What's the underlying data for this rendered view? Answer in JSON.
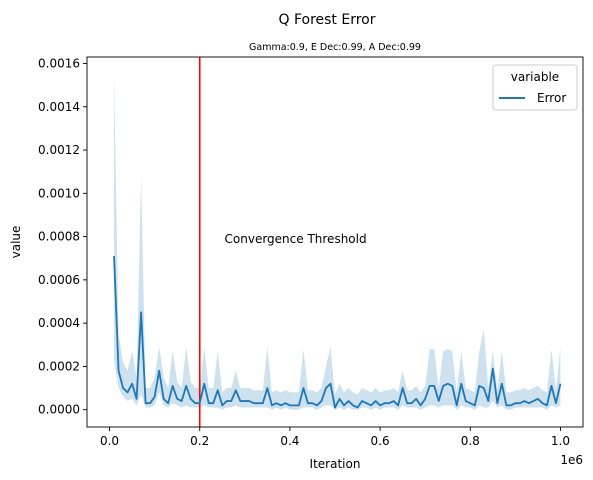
{
  "chart_data": {
    "type": "line",
    "title": "Q Forest Error",
    "subtitle": "Gamma:0.9, E Dec:0.99, A Dec:0.99",
    "xlabel": "Iteration",
    "ylabel": "value",
    "x_offset_label": "1e6",
    "xlim": [
      -50000,
      1050000
    ],
    "ylim": [
      -8e-05,
      0.00163
    ],
    "x_ticks": [
      0,
      200000,
      400000,
      600000,
      800000,
      1000000
    ],
    "x_tick_labels": [
      "0.0",
      "0.2",
      "0.4",
      "0.6",
      "0.8",
      "1.0"
    ],
    "y_ticks": [
      0,
      0.0002,
      0.0004,
      0.0006,
      0.0008,
      0.001,
      0.0012,
      0.0014,
      0.0016
    ],
    "y_tick_labels": [
      "0.0000",
      "0.0002",
      "0.0004",
      "0.0006",
      "0.0008",
      "0.0010",
      "0.0012",
      "0.0014",
      "0.0016"
    ],
    "legend": {
      "title": "variable",
      "placement": "top-right",
      "entries": [
        "Error"
      ]
    },
    "grid": false,
    "series": [
      {
        "name": "Error",
        "color": "#1f77b4",
        "x": [
          10000,
          20000,
          30000,
          40000,
          50000,
          60000,
          70000,
          80000,
          90000,
          100000,
          110000,
          120000,
          130000,
          140000,
          150000,
          160000,
          170000,
          180000,
          190000,
          200000,
          210000,
          220000,
          230000,
          240000,
          250000,
          260000,
          270000,
          280000,
          290000,
          300000,
          310000,
          320000,
          330000,
          340000,
          350000,
          360000,
          370000,
          380000,
          390000,
          400000,
          410000,
          420000,
          430000,
          440000,
          450000,
          460000,
          470000,
          480000,
          490000,
          500000,
          510000,
          520000,
          530000,
          540000,
          550000,
          560000,
          570000,
          580000,
          590000,
          600000,
          610000,
          620000,
          630000,
          640000,
          650000,
          660000,
          670000,
          680000,
          690000,
          700000,
          710000,
          720000,
          730000,
          740000,
          750000,
          760000,
          770000,
          780000,
          790000,
          800000,
          810000,
          820000,
          830000,
          840000,
          850000,
          860000,
          870000,
          880000,
          890000,
          900000,
          910000,
          920000,
          930000,
          940000,
          950000,
          960000,
          970000,
          980000,
          990000,
          1000000
        ],
        "y": [
          0.00071,
          0.00018,
          0.0001,
          8e-05,
          0.00012,
          5e-05,
          0.00045,
          3e-05,
          3e-05,
          6e-05,
          0.00018,
          5e-05,
          3e-05,
          0.00011,
          5e-05,
          4e-05,
          0.00011,
          5e-05,
          3e-05,
          3e-05,
          0.00012,
          3e-05,
          3e-05,
          9e-05,
          2e-05,
          4e-05,
          4e-05,
          9e-05,
          4e-05,
          4e-05,
          4e-05,
          3e-05,
          3e-05,
          3e-05,
          0.0001,
          2e-05,
          3e-05,
          2e-05,
          3e-05,
          2e-05,
          2e-05,
          2e-05,
          0.0001,
          3e-05,
          3e-05,
          2e-05,
          4e-05,
          0.0001,
          0.00012,
          1e-05,
          5e-05,
          2e-05,
          4e-05,
          2e-05,
          1e-05,
          4e-05,
          3e-05,
          2e-05,
          4e-05,
          2e-05,
          3e-05,
          3e-05,
          4e-05,
          2e-05,
          0.0001,
          3e-05,
          3e-05,
          5e-05,
          2e-05,
          5e-05,
          0.00011,
          0.00011,
          4e-05,
          0.00011,
          0.00012,
          0.00011,
          2e-05,
          0.00012,
          4e-05,
          3e-05,
          2e-05,
          0.00011,
          0.0001,
          4e-05,
          0.00019,
          3e-05,
          0.00012,
          2e-05,
          2e-05,
          3e-05,
          3e-05,
          4e-05,
          3e-05,
          4e-05,
          5e-05,
          3e-05,
          2e-05,
          0.00011,
          3e-05,
          0.00012
        ],
        "ci_upper": [
          0.00155,
          0.00035,
          0.00022,
          0.00018,
          0.00027,
          0.00015,
          0.00108,
          0.0001,
          0.0001,
          0.00015,
          0.00029,
          0.00015,
          0.0001,
          0.00027,
          0.00013,
          0.0001,
          0.00029,
          0.00013,
          0.0001,
          0.0001,
          0.00029,
          0.0001,
          0.0001,
          0.00027,
          8e-05,
          0.0001,
          0.0001,
          0.00018,
          0.0001,
          0.0001,
          0.0001,
          9e-05,
          9e-05,
          9e-05,
          0.00029,
          8e-05,
          9e-05,
          8e-05,
          9e-05,
          8e-05,
          8e-05,
          8e-05,
          0.00028,
          9e-05,
          9e-05,
          8e-05,
          0.0001,
          0.0002,
          0.00029,
          7e-05,
          0.00012,
          8e-05,
          0.0001,
          8e-05,
          7e-05,
          0.0001,
          9e-05,
          8e-05,
          0.0001,
          8e-05,
          9e-05,
          9e-05,
          0.0001,
          8e-05,
          0.00018,
          9e-05,
          9e-05,
          0.00011,
          8e-05,
          0.00011,
          0.00028,
          0.00028,
          0.0001,
          0.00027,
          0.00028,
          0.00027,
          8e-05,
          0.00027,
          0.0001,
          9e-05,
          8e-05,
          0.00027,
          0.00037,
          0.0001,
          0.00027,
          9e-05,
          0.00027,
          8e-05,
          8e-05,
          9e-05,
          9e-05,
          0.0001,
          9e-05,
          0.0001,
          0.00011,
          9e-05,
          8e-05,
          0.00028,
          9e-05,
          0.00029
        ],
        "ci_lower": [
          0.00023,
          0.0001,
          6e-05,
          4e-05,
          5e-05,
          2e-05,
          7e-05,
          1e-05,
          1e-05,
          2e-05,
          8e-05,
          2e-05,
          1e-05,
          3e-05,
          2e-05,
          1e-05,
          2e-05,
          1e-05,
          1e-05,
          1e-05,
          2e-05,
          1e-05,
          1e-05,
          1e-05,
          0.0,
          1e-05,
          1e-05,
          2e-05,
          1e-05,
          1e-05,
          1e-05,
          1e-05,
          1e-05,
          1e-05,
          1e-05,
          0.0,
          1e-05,
          0.0,
          1e-05,
          0.0,
          0.0,
          0.0,
          1e-05,
          1e-05,
          1e-05,
          0.0,
          1e-05,
          2e-05,
          2e-05,
          0.0,
          1e-05,
          0.0,
          1e-05,
          0.0,
          0.0,
          1e-05,
          1e-05,
          0.0,
          1e-05,
          0.0,
          1e-05,
          1e-05,
          1e-05,
          0.0,
          2e-05,
          1e-05,
          1e-05,
          1e-05,
          0.0,
          1e-05,
          2e-05,
          2e-05,
          1e-05,
          2e-05,
          2e-05,
          2e-05,
          0.0,
          2e-05,
          1e-05,
          1e-05,
          0.0,
          2e-05,
          1e-05,
          1e-05,
          4e-05,
          1e-05,
          2e-05,
          0.0,
          0.0,
          1e-05,
          1e-05,
          1e-05,
          1e-05,
          1e-05,
          1e-05,
          1e-05,
          0.0,
          2e-05,
          1e-05,
          2e-05
        ]
      }
    ],
    "annotations": [
      {
        "type": "vline",
        "x": 200000,
        "color": "#ff0000"
      },
      {
        "type": "text",
        "text": "Convergence Threshold",
        "x": 255000,
        "y": 0.00077,
        "color": "#ff0000"
      }
    ]
  }
}
